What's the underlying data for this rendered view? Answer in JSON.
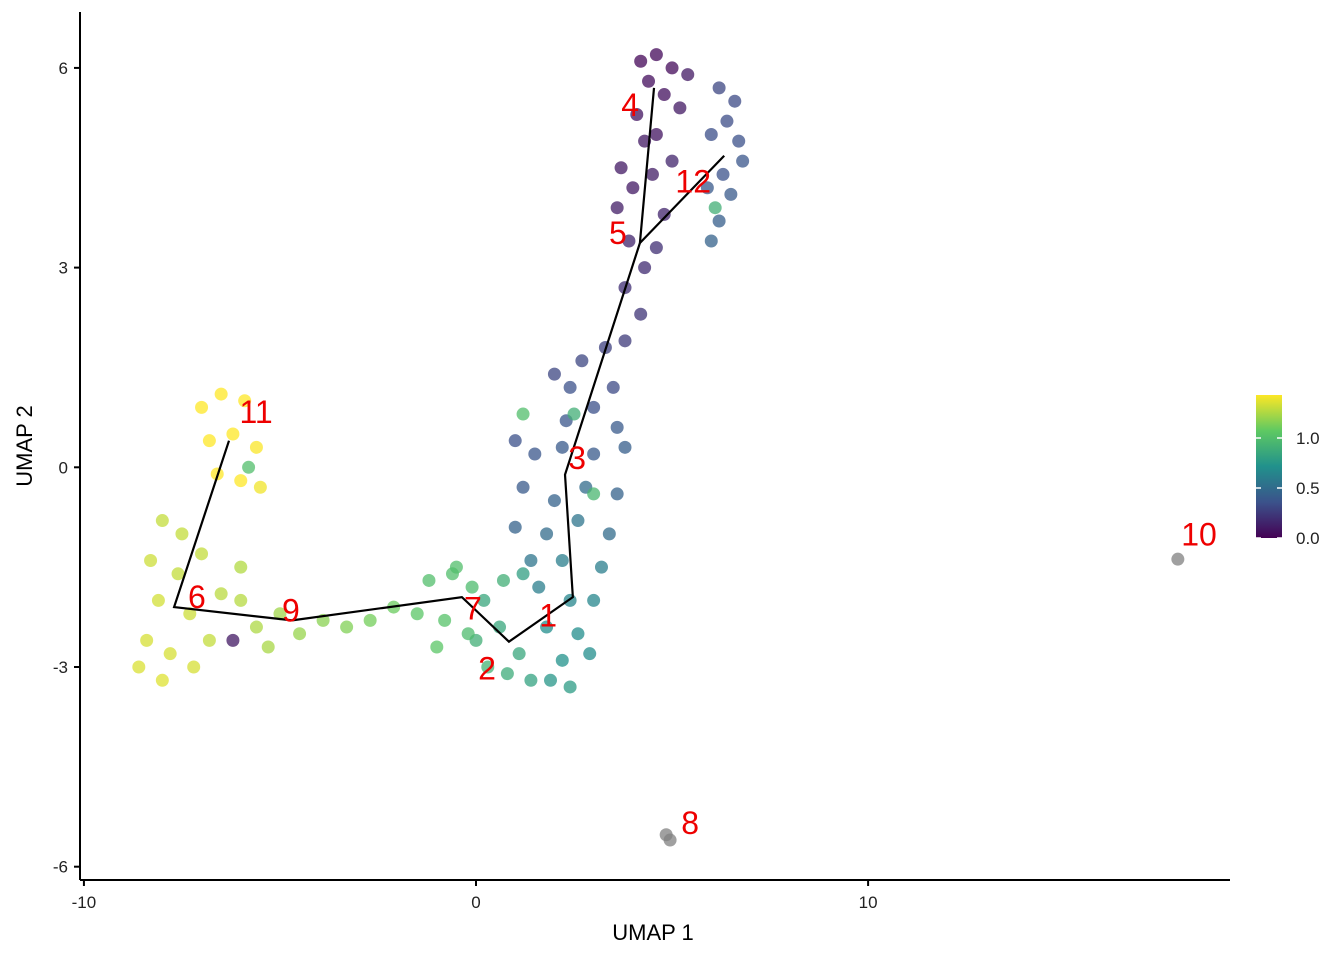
{
  "chart_data": {
    "type": "scatter",
    "x_label": "UMAP 1",
    "y_label": "UMAP 2",
    "xlim": [
      -10.1,
      19.23
    ],
    "ylim": [
      -6.2,
      6.84
    ],
    "xticks": [
      -10,
      0,
      10
    ],
    "yticks": [
      -6,
      -3,
      0,
      3,
      6
    ],
    "colorscale": [
      "#440154",
      "#3b528b",
      "#21918c",
      "#5ec962",
      "#fde725"
    ],
    "color_lim": [
      0,
      1.43
    ],
    "color_ticks": [
      {
        "value": 0,
        "label": "0.0"
      },
      {
        "value": 0.5,
        "label": "0.5"
      },
      {
        "value": 1,
        "label": "1.0"
      }
    ],
    "na_color": "#808080",
    "line_color": "#000000",
    "label_color": "#ee0000",
    "points": [
      {
        "x": 4.2,
        "y": 6.1,
        "value": 0.02
      },
      {
        "x": 4.6,
        "y": 6.2,
        "value": 0.03
      },
      {
        "x": 5.0,
        "y": 6.0,
        "value": 0.04
      },
      {
        "x": 4.4,
        "y": 5.8,
        "value": 0.05
      },
      {
        "x": 4.8,
        "y": 5.6,
        "value": 0.06
      },
      {
        "x": 4.1,
        "y": 5.3,
        "value": 0.08
      },
      {
        "x": 4.6,
        "y": 5.0,
        "value": 0.08
      },
      {
        "x": 5.2,
        "y": 5.4,
        "value": 0.1
      },
      {
        "x": 4.3,
        "y": 4.9,
        "value": 0.1
      },
      {
        "x": 5.4,
        "y": 5.9,
        "value": 0.1
      },
      {
        "x": 3.7,
        "y": 4.5,
        "value": 0.1
      },
      {
        "x": 4.0,
        "y": 4.2,
        "value": 0.1
      },
      {
        "x": 4.5,
        "y": 4.4,
        "value": 0.12
      },
      {
        "x": 3.6,
        "y": 3.9,
        "value": 0.12
      },
      {
        "x": 4.8,
        "y": 3.8,
        "value": 0.15
      },
      {
        "x": 3.9,
        "y": 3.4,
        "value": 0.15
      },
      {
        "x": 4.3,
        "y": 3.0,
        "value": 0.18
      },
      {
        "x": 3.8,
        "y": 2.7,
        "value": 0.2
      },
      {
        "x": 4.6,
        "y": 3.3,
        "value": 0.2
      },
      {
        "x": 5.0,
        "y": 4.6,
        "value": 0.15
      },
      {
        "x": 4.2,
        "y": 2.3,
        "value": 0.22
      },
      {
        "x": 3.8,
        "y": 1.9,
        "value": 0.25
      },
      {
        "x": 6.2,
        "y": 5.7,
        "value": 0.3
      },
      {
        "x": 6.6,
        "y": 5.5,
        "value": 0.32
      },
      {
        "x": 6.0,
        "y": 5.0,
        "value": 0.34
      },
      {
        "x": 6.7,
        "y": 4.9,
        "value": 0.35
      },
      {
        "x": 6.3,
        "y": 4.4,
        "value": 0.36
      },
      {
        "x": 6.8,
        "y": 4.6,
        "value": 0.38
      },
      {
        "x": 5.9,
        "y": 4.2,
        "value": 0.4
      },
      {
        "x": 6.5,
        "y": 4.1,
        "value": 0.4
      },
      {
        "x": 6.2,
        "y": 3.7,
        "value": 0.42
      },
      {
        "x": 6.0,
        "y": 3.4,
        "value": 0.45
      },
      {
        "x": 6.4,
        "y": 5.2,
        "value": 0.33
      },
      {
        "x": 6.1,
        "y": 3.9,
        "value": 0.9
      },
      {
        "x": 2.0,
        "y": 1.4,
        "value": 0.3
      },
      {
        "x": 2.4,
        "y": 1.2,
        "value": 0.35
      },
      {
        "x": 2.7,
        "y": 1.6,
        "value": 0.3
      },
      {
        "x": 3.3,
        "y": 1.8,
        "value": 0.28
      },
      {
        "x": 3.5,
        "y": 1.2,
        "value": 0.32
      },
      {
        "x": 3.0,
        "y": 0.9,
        "value": 0.35
      },
      {
        "x": 2.3,
        "y": 0.7,
        "value": 0.38
      },
      {
        "x": 1.2,
        "y": 0.8,
        "value": 1.0
      },
      {
        "x": 2.5,
        "y": 0.8,
        "value": 0.9
      },
      {
        "x": 3.6,
        "y": 0.6,
        "value": 0.4
      },
      {
        "x": 1.0,
        "y": 0.4,
        "value": 0.35
      },
      {
        "x": 1.5,
        "y": 0.2,
        "value": 0.38
      },
      {
        "x": 2.2,
        "y": 0.3,
        "value": 0.4
      },
      {
        "x": 3.0,
        "y": 0.2,
        "value": 0.4
      },
      {
        "x": 3.8,
        "y": 0.3,
        "value": 0.42
      },
      {
        "x": 1.2,
        "y": -0.3,
        "value": 0.4
      },
      {
        "x": 2.0,
        "y": -0.5,
        "value": 0.45
      },
      {
        "x": 2.8,
        "y": -0.3,
        "value": 0.5
      },
      {
        "x": 3.6,
        "y": -0.4,
        "value": 0.45
      },
      {
        "x": 1.0,
        "y": -0.9,
        "value": 0.45
      },
      {
        "x": 1.8,
        "y": -1.0,
        "value": 0.5
      },
      {
        "x": 2.6,
        "y": -0.8,
        "value": 0.55
      },
      {
        "x": 3.4,
        "y": -1.0,
        "value": 0.5
      },
      {
        "x": 3.0,
        "y": -0.4,
        "value": 0.95
      },
      {
        "x": 1.4,
        "y": -1.4,
        "value": 0.55
      },
      {
        "x": 2.2,
        "y": -1.4,
        "value": 0.6
      },
      {
        "x": 3.2,
        "y": -1.5,
        "value": 0.6
      },
      {
        "x": 1.6,
        "y": -1.8,
        "value": 0.6
      },
      {
        "x": 2.4,
        "y": -2.0,
        "value": 0.65
      },
      {
        "x": 3.0,
        "y": -2.0,
        "value": 0.65
      },
      {
        "x": 1.8,
        "y": -2.4,
        "value": 0.7
      },
      {
        "x": 2.6,
        "y": -2.5,
        "value": 0.7
      },
      {
        "x": 2.2,
        "y": -2.9,
        "value": 0.72
      },
      {
        "x": 1.9,
        "y": -3.2,
        "value": 0.75
      },
      {
        "x": 2.4,
        "y": -3.3,
        "value": 0.78
      },
      {
        "x": 2.9,
        "y": -2.8,
        "value": 0.7
      },
      {
        "x": 0.2,
        "y": -2.0,
        "value": 0.85
      },
      {
        "x": 0.7,
        "y": -1.7,
        "value": 0.9
      },
      {
        "x": 1.2,
        "y": -1.6,
        "value": 0.8
      },
      {
        "x": 0.0,
        "y": -2.6,
        "value": 0.9
      },
      {
        "x": 0.6,
        "y": -2.4,
        "value": 0.85
      },
      {
        "x": 1.1,
        "y": -2.8,
        "value": 0.85
      },
      {
        "x": 0.3,
        "y": -3.0,
        "value": 0.92
      },
      {
        "x": 0.8,
        "y": -3.1,
        "value": 0.88
      },
      {
        "x": 1.4,
        "y": -3.2,
        "value": 0.82
      },
      {
        "x": -1.2,
        "y": -1.7,
        "value": 1.0
      },
      {
        "x": -0.6,
        "y": -1.6,
        "value": 1.0
      },
      {
        "x": -0.1,
        "y": -1.8,
        "value": 0.98
      },
      {
        "x": -1.5,
        "y": -2.2,
        "value": 1.05
      },
      {
        "x": -0.8,
        "y": -2.3,
        "value": 1.02
      },
      {
        "x": -0.2,
        "y": -2.5,
        "value": 0.98
      },
      {
        "x": -1.0,
        "y": -2.7,
        "value": 1.05
      },
      {
        "x": -0.5,
        "y": -1.5,
        "value": 1.0
      },
      {
        "x": -2.1,
        "y": -2.1,
        "value": 1.1
      },
      {
        "x": -2.7,
        "y": -2.3,
        "value": 1.12
      },
      {
        "x": -3.3,
        "y": -2.4,
        "value": 1.15
      },
      {
        "x": -3.9,
        "y": -2.3,
        "value": 1.17
      },
      {
        "x": -4.5,
        "y": -2.5,
        "value": 1.2
      },
      {
        "x": -5.0,
        "y": -2.2,
        "value": 1.22
      },
      {
        "x": -5.6,
        "y": -2.4,
        "value": 1.25
      },
      {
        "x": -5.3,
        "y": -2.7,
        "value": 1.24
      },
      {
        "x": -6.0,
        "y": -2.0,
        "value": 1.27
      },
      {
        "x": -8.0,
        "y": -0.8,
        "value": 1.3
      },
      {
        "x": -7.5,
        "y": -1.0,
        "value": 1.3
      },
      {
        "x": -8.3,
        "y": -1.4,
        "value": 1.32
      },
      {
        "x": -7.6,
        "y": -1.6,
        "value": 1.3
      },
      {
        "x": -8.1,
        "y": -2.0,
        "value": 1.33
      },
      {
        "x": -7.3,
        "y": -2.2,
        "value": 1.32
      },
      {
        "x": -8.4,
        "y": -2.6,
        "value": 1.34
      },
      {
        "x": -7.8,
        "y": -2.8,
        "value": 1.34
      },
      {
        "x": -8.6,
        "y": -3.0,
        "value": 1.35
      },
      {
        "x": -8.0,
        "y": -3.2,
        "value": 1.36
      },
      {
        "x": -7.2,
        "y": -3.0,
        "value": 1.34
      },
      {
        "x": -6.8,
        "y": -2.6,
        "value": 1.3
      },
      {
        "x": -6.5,
        "y": -1.9,
        "value": 1.28
      },
      {
        "x": -6.0,
        "y": -1.5,
        "value": 1.26
      },
      {
        "x": -7.0,
        "y": -1.3,
        "value": 1.3
      },
      {
        "x": -6.2,
        "y": -2.6,
        "value": 0.1
      },
      {
        "x": -7.0,
        "y": 0.9,
        "value": 1.45
      },
      {
        "x": -6.5,
        "y": 1.1,
        "value": 1.45
      },
      {
        "x": -5.9,
        "y": 1.0,
        "value": 1.44
      },
      {
        "x": -6.8,
        "y": 0.4,
        "value": 1.45
      },
      {
        "x": -6.2,
        "y": 0.5,
        "value": 1.44
      },
      {
        "x": -5.6,
        "y": 0.3,
        "value": 1.42
      },
      {
        "x": -6.6,
        "y": -0.1,
        "value": 1.44
      },
      {
        "x": -5.5,
        "y": -0.3,
        "value": 1.4
      },
      {
        "x": -6.0,
        "y": -0.2,
        "value": 1.43
      },
      {
        "x": -5.8,
        "y": 0.0,
        "value": 1.0
      },
      {
        "x": 4.85,
        "y": -5.52,
        "value": null
      },
      {
        "x": 4.95,
        "y": -5.6,
        "value": null
      },
      {
        "x": 17.9,
        "y": -1.38,
        "value": null
      }
    ],
    "trajectory": [
      {
        "x": [
          -6.3,
          -7.7,
          -4.69,
          -0.36,
          0.84,
          2.47,
          2.27,
          4.18,
          4.54
        ],
        "y": [
          0.4,
          -2.1,
          -2.3,
          -1.95,
          -2.62,
          -1.95,
          -0.11,
          3.37,
          5.7
        ]
      },
      {
        "x": [
          4.18,
          6.33
        ],
        "y": [
          3.37,
          4.68
        ]
      }
    ],
    "labels": [
      {
        "text": "4",
        "x": 3.93,
        "y": 5.44
      },
      {
        "text": "12",
        "x": 5.54,
        "y": 4.29
      },
      {
        "text": "5",
        "x": 3.62,
        "y": 3.52
      },
      {
        "text": "3",
        "x": 2.58,
        "y": 0.14
      },
      {
        "text": "11",
        "x": -5.61,
        "y": 0.83
      },
      {
        "text": "6",
        "x": -7.12,
        "y": -1.95
      },
      {
        "text": "9",
        "x": -4.72,
        "y": -2.15
      },
      {
        "text": "7",
        "x": -0.08,
        "y": -2.12
      },
      {
        "text": "1",
        "x": 1.84,
        "y": -2.23
      },
      {
        "text": "2",
        "x": 0.28,
        "y": -3.02
      },
      {
        "text": "10",
        "x": 18.44,
        "y": -1.01
      },
      {
        "text": "8",
        "x": 5.46,
        "y": -5.34
      }
    ]
  }
}
